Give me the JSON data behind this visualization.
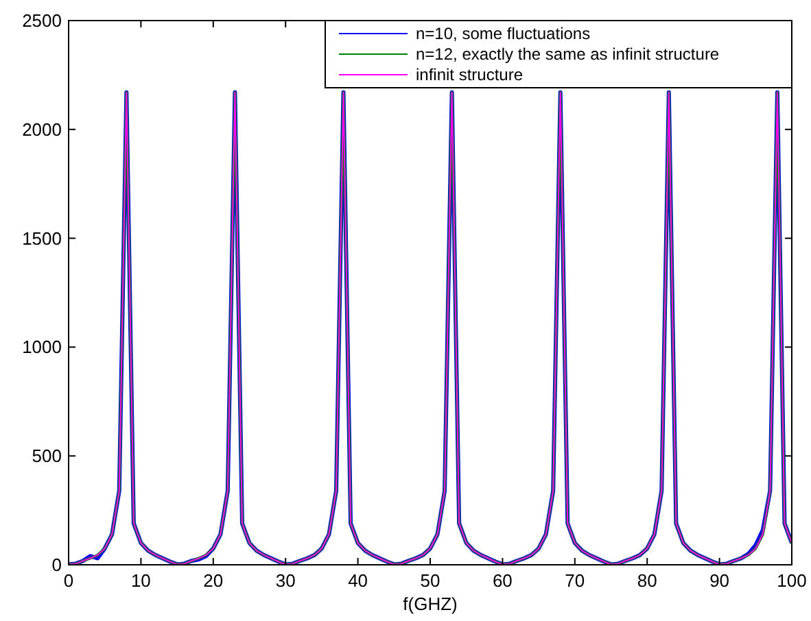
{
  "chart_data": {
    "type": "line",
    "xlabel": "f(GHZ)",
    "xlim": [
      0,
      100
    ],
    "ylim": [
      0,
      2500
    ],
    "xticks": [
      0,
      10,
      20,
      30,
      40,
      50,
      60,
      70,
      80,
      90,
      100
    ],
    "yticks": [
      0,
      500,
      1000,
      1500,
      2000,
      2500
    ],
    "legend": "top right",
    "grid": false,
    "marker": "none",
    "line_style": "solid",
    "x": [
      0,
      1,
      2,
      3,
      4,
      5,
      6,
      7,
      8,
      9,
      10,
      11,
      12,
      13,
      14,
      15,
      16,
      17,
      18,
      19,
      20,
      21,
      22,
      23,
      24,
      25,
      26,
      27,
      28,
      29,
      30,
      31,
      32,
      33,
      34,
      35,
      36,
      37,
      38,
      39,
      40,
      41,
      42,
      43,
      44,
      45,
      46,
      47,
      48,
      49,
      50,
      51,
      52,
      53,
      54,
      55,
      56,
      57,
      58,
      59,
      60,
      61,
      62,
      63,
      64,
      65,
      66,
      67,
      68,
      69,
      70,
      71,
      72,
      73,
      74,
      75,
      76,
      77,
      78,
      79,
      80,
      81,
      82,
      83,
      84,
      85,
      86,
      87,
      88,
      89,
      90,
      91,
      92,
      93,
      94,
      95,
      96,
      97,
      98,
      99,
      100
    ],
    "series": [
      {
        "name": "n=10, some fluctuations",
        "color": "#0000ff",
        "values": [
          2,
          5,
          18,
          40,
          30,
          75,
          140,
          340,
          2170,
          190,
          100,
          65,
          45,
          30,
          15,
          2,
          5,
          18,
          25,
          40,
          75,
          140,
          340,
          2170,
          190,
          100,
          65,
          45,
          30,
          15,
          2,
          5,
          18,
          30,
          45,
          75,
          140,
          340,
          2170,
          190,
          100,
          65,
          45,
          30,
          15,
          2,
          5,
          18,
          30,
          45,
          75,
          140,
          340,
          2170,
          190,
          100,
          65,
          45,
          30,
          15,
          2,
          5,
          18,
          30,
          45,
          75,
          140,
          340,
          2170,
          190,
          100,
          65,
          45,
          30,
          15,
          2,
          5,
          18,
          30,
          45,
          75,
          140,
          340,
          2170,
          190,
          100,
          65,
          45,
          30,
          15,
          2,
          5,
          18,
          30,
          50,
          90,
          160,
          340,
          2170,
          190,
          100
        ]
      },
      {
        "name": "n=12, exactly the same as infinit structure",
        "color": "#008000",
        "values": [
          2,
          5,
          18,
          30,
          45,
          75,
          140,
          340,
          2170,
          190,
          100,
          65,
          45,
          30,
          15,
          2,
          5,
          18,
          30,
          45,
          75,
          140,
          340,
          2170,
          190,
          100,
          65,
          45,
          30,
          15,
          2,
          5,
          18,
          30,
          45,
          75,
          140,
          340,
          2170,
          190,
          100,
          65,
          45,
          30,
          15,
          2,
          5,
          18,
          30,
          45,
          75,
          140,
          340,
          2170,
          190,
          100,
          65,
          45,
          30,
          15,
          2,
          5,
          18,
          30,
          45,
          75,
          140,
          340,
          2170,
          190,
          100,
          65,
          45,
          30,
          15,
          2,
          5,
          18,
          30,
          45,
          75,
          140,
          340,
          2170,
          190,
          100,
          65,
          45,
          30,
          15,
          2,
          5,
          18,
          30,
          45,
          75,
          140,
          340,
          2170,
          190,
          100
        ]
      },
      {
        "name": "infinit structure",
        "color": "#ff00ff",
        "values": [
          2,
          5,
          18,
          30,
          45,
          75,
          140,
          340,
          2170,
          190,
          100,
          65,
          45,
          30,
          15,
          2,
          5,
          18,
          30,
          45,
          75,
          140,
          340,
          2170,
          190,
          100,
          65,
          45,
          30,
          15,
          2,
          5,
          18,
          30,
          45,
          75,
          140,
          340,
          2170,
          190,
          100,
          65,
          45,
          30,
          15,
          2,
          5,
          18,
          30,
          45,
          75,
          140,
          340,
          2170,
          190,
          100,
          65,
          45,
          30,
          15,
          2,
          5,
          18,
          30,
          45,
          75,
          140,
          340,
          2170,
          190,
          100,
          65,
          45,
          30,
          15,
          2,
          5,
          18,
          30,
          45,
          75,
          140,
          340,
          2170,
          190,
          100,
          65,
          45,
          30,
          15,
          2,
          5,
          18,
          30,
          45,
          75,
          140,
          340,
          2170,
          190,
          100
        ]
      }
    ]
  }
}
